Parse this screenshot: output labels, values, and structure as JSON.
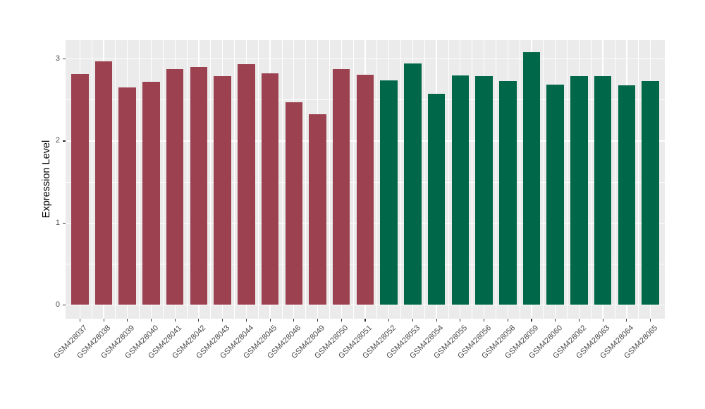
{
  "figure": {
    "background": "#FFFFFF",
    "panel_background": "#EBEBEB",
    "grid_color": "#FFFFFF",
    "tick_mark_color": "#333333",
    "tick_label_color": "#4D4D4D",
    "axis_title_color": "#000000",
    "group_colors": {
      "left_group": "#9C4150",
      "right_group": "#006749"
    }
  },
  "chart_data": {
    "type": "bar",
    "title": "",
    "xlabel": "",
    "ylabel": "Expression Level",
    "ylim": [
      0,
      3.23
    ],
    "yticks": [
      0,
      1,
      2,
      3
    ],
    "ytick_labels": [
      "0",
      "1",
      "2",
      "3"
    ],
    "grid": "major and minor, white on gray panel",
    "legend": "none",
    "x_label_rotation_deg": 45,
    "categories": [
      "GSM428037",
      "GSM428038",
      "GSM428039",
      "GSM428040",
      "GSM428041",
      "GSM428042",
      "GSM428043",
      "GSM428044",
      "GSM428045",
      "GSM428046",
      "GSM428049",
      "GSM428050",
      "GSM428051",
      "GSM428052",
      "GSM428053",
      "GSM428054",
      "GSM428055",
      "GSM428056",
      "GSM428058",
      "GSM428059",
      "GSM428060",
      "GSM428062",
      "GSM428063",
      "GSM428064",
      "GSM428065"
    ],
    "values": [
      2.82,
      2.97,
      2.65,
      2.72,
      2.88,
      2.9,
      2.79,
      2.94,
      2.83,
      2.47,
      2.33,
      2.88,
      2.81,
      2.74,
      2.95,
      2.58,
      2.8,
      2.79,
      2.73,
      3.08,
      2.69,
      2.79,
      2.79,
      2.68,
      2.73
    ],
    "colors": [
      "#9C4150",
      "#9C4150",
      "#9C4150",
      "#9C4150",
      "#9C4150",
      "#9C4150",
      "#9C4150",
      "#9C4150",
      "#9C4150",
      "#9C4150",
      "#9C4150",
      "#9C4150",
      "#9C4150",
      "#006749",
      "#006749",
      "#006749",
      "#006749",
      "#006749",
      "#006749",
      "#006749",
      "#006749",
      "#006749",
      "#006749",
      "#006749",
      "#006749"
    ]
  }
}
